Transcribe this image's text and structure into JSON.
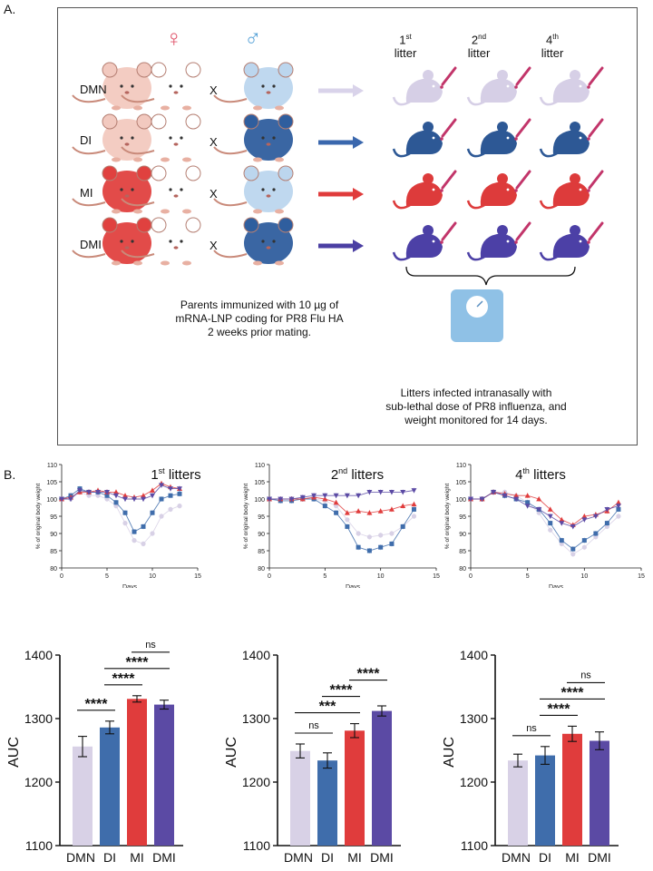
{
  "panel_a": {
    "label": "A.",
    "female_symbol": "♀",
    "male_symbol": "♂",
    "cross_symbol": "X",
    "litter_headers": [
      {
        "num": "1",
        "sup": "st",
        "word": "litter"
      },
      {
        "num": "2",
        "sup": "nd",
        "word": "litter"
      },
      {
        "num": "4",
        "sup": "th",
        "word": "litter"
      }
    ],
    "rows": [
      {
        "name": "DMN",
        "mother": "#f2c9bf",
        "father": "#bcd6ee",
        "arrow": "#d9d3ea",
        "litter": "#d6cfe6"
      },
      {
        "name": "DI",
        "mother": "#f2c9bf",
        "father": "#2f5e9e",
        "arrow": "#3a67ad",
        "litter": "#2d5895"
      },
      {
        "name": "MI",
        "mother": "#e0413f",
        "father": "#bcd6ee",
        "arrow": "#e03c3c",
        "litter": "#dd3b3b"
      },
      {
        "name": "DMI",
        "mother": "#e0413f",
        "father": "#2f5e9e",
        "arrow": "#4b3fa3",
        "litter": "#4c40a6"
      }
    ],
    "parents_note": [
      "Parents immunized with 10 µg of",
      "mRNA-LNP coding for PR8 Flu HA",
      "2 weeks prior mating."
    ],
    "litters_note": [
      "Litters infected intranasally with",
      "sub-lethal dose of PR8 influenza, and",
      "weight monitored for 14 days."
    ]
  },
  "panel_b": {
    "label": "B.",
    "titles": [
      {
        "num": "1",
        "sup": "st",
        "word": " litters"
      },
      {
        "num": "2",
        "sup": "nd",
        "word": " litters"
      },
      {
        "num": "4",
        "sup": "th",
        "word": " litters"
      }
    ]
  },
  "colors": {
    "DMN": "#d8d1e6",
    "DI": "#3f6dab",
    "MI": "#e03c3c",
    "DMI": "#5b4aa4"
  },
  "chart_data": [
    {
      "type": "line",
      "title": "1st litters",
      "xlabel": "Days",
      "ylabel": "% of original body weight",
      "xlim": [
        0,
        15
      ],
      "ylim": [
        80,
        110
      ],
      "xticks": [
        0,
        5,
        10,
        15
      ],
      "yticks": [
        80,
        85,
        90,
        95,
        100,
        105,
        110
      ],
      "x": [
        0,
        1,
        2,
        3,
        4,
        5,
        6,
        7,
        8,
        9,
        10,
        11,
        12,
        13
      ],
      "series": [
        {
          "name": "DMN",
          "values": [
            100,
            100,
            102,
            101,
            101,
            100,
            98,
            93,
            88,
            87,
            90,
            95,
            97,
            98
          ]
        },
        {
          "name": "DI",
          "values": [
            100,
            101,
            103,
            102,
            102,
            101,
            99,
            96,
            90.5,
            92,
            96,
            100,
            101,
            101.5
          ]
        },
        {
          "name": "MI",
          "values": [
            100,
            100.5,
            102,
            102,
            102.5,
            102,
            102,
            101,
            100.5,
            101,
            102.5,
            104.5,
            103.5,
            103
          ]
        },
        {
          "name": "DMI",
          "values": [
            100,
            100,
            102.5,
            102,
            102,
            102,
            101,
            100,
            100,
            100,
            101,
            104,
            103,
            103
          ]
        }
      ]
    },
    {
      "type": "line",
      "title": "2nd litters",
      "xlabel": "Days",
      "ylabel": "% of original body weight",
      "xlim": [
        0,
        15
      ],
      "ylim": [
        80,
        110
      ],
      "xticks": [
        0,
        5,
        10,
        15
      ],
      "yticks": [
        80,
        85,
        90,
        95,
        100,
        105,
        110
      ],
      "x": [
        0,
        1,
        2,
        3,
        4,
        5,
        6,
        7,
        8,
        9,
        10,
        11,
        12,
        13
      ],
      "series": [
        {
          "name": "DMN",
          "values": [
            100,
            100,
            100,
            100,
            100,
            99.5,
            98,
            94,
            90,
            89,
            89.5,
            90,
            92,
            95
          ]
        },
        {
          "name": "DI",
          "values": [
            100,
            99.5,
            99.5,
            100,
            100,
            98,
            96,
            92,
            86,
            85,
            86,
            87,
            92,
            97
          ]
        },
        {
          "name": "MI",
          "values": [
            100,
            100,
            100,
            100,
            100.5,
            100,
            99,
            96,
            96.5,
            96,
            96.5,
            97,
            98,
            98.5
          ]
        },
        {
          "name": "DMI",
          "values": [
            100,
            100,
            100,
            100.5,
            101,
            101,
            101,
            101,
            101,
            102,
            102,
            102,
            102,
            102.5
          ]
        }
      ]
    },
    {
      "type": "line",
      "title": "4th litters",
      "xlabel": "Days",
      "ylabel": "% of original body weight",
      "xlim": [
        0,
        15
      ],
      "ylim": [
        80,
        110
      ],
      "xticks": [
        0,
        5,
        10,
        15
      ],
      "yticks": [
        80,
        85,
        90,
        95,
        100,
        105,
        110
      ],
      "x": [
        0,
        1,
        2,
        3,
        4,
        5,
        6,
        7,
        8,
        9,
        10,
        11,
        12,
        13
      ],
      "series": [
        {
          "name": "DMN",
          "values": [
            100,
            100,
            102,
            102,
            101,
            99,
            96,
            91,
            87,
            84,
            86,
            89,
            92,
            95
          ]
        },
        {
          "name": "DI",
          "values": [
            100,
            100,
            102,
            101,
            100,
            99,
            97,
            93,
            88,
            85.5,
            88,
            90,
            93,
            97
          ]
        },
        {
          "name": "MI",
          "values": [
            100,
            100,
            102,
            101.5,
            101,
            101,
            100,
            97,
            94,
            92.5,
            95,
            95.5,
            96.5,
            99
          ]
        },
        {
          "name": "DMI",
          "values": [
            100,
            100,
            102,
            101,
            100,
            98,
            97,
            95,
            93,
            92,
            94,
            95,
            97,
            98
          ]
        }
      ]
    },
    {
      "type": "bar",
      "categories": [
        "DMN",
        "DI",
        "MI",
        "DMI"
      ],
      "values": [
        1256,
        1286,
        1331,
        1322
      ],
      "errors": [
        16,
        10,
        5,
        7
      ],
      "ylabel": "AUC",
      "ylim": [
        1100,
        1400
      ],
      "yticks": [
        1100,
        1200,
        1300,
        1400
      ],
      "significance": [
        {
          "from": "DMN",
          "to": "DI",
          "label": "****"
        },
        {
          "from": "DI",
          "to": "MI",
          "label": "****"
        },
        {
          "from": "DI",
          "to": "DMI",
          "label": "****"
        },
        {
          "from": "MI",
          "to": "DMI",
          "label": "ns"
        }
      ]
    },
    {
      "type": "bar",
      "categories": [
        "DMN",
        "DI",
        "MI",
        "DMI"
      ],
      "values": [
        1249,
        1234,
        1281,
        1312
      ],
      "errors": [
        11,
        12,
        11,
        8
      ],
      "ylabel": "AUC",
      "ylim": [
        1100,
        1400
      ],
      "yticks": [
        1100,
        1200,
        1300,
        1400
      ],
      "significance": [
        {
          "from": "DMN",
          "to": "DI",
          "label": "ns"
        },
        {
          "from": "DMN",
          "to": "MI",
          "label": "***"
        },
        {
          "from": "DI",
          "to": "MI",
          "label": "****"
        },
        {
          "from": "MI",
          "to": "DMI",
          "label": "****"
        }
      ]
    },
    {
      "type": "bar",
      "categories": [
        "DMN",
        "DI",
        "MI",
        "DMI"
      ],
      "values": [
        1234,
        1242,
        1276,
        1265
      ],
      "errors": [
        10,
        14,
        12,
        14
      ],
      "ylabel": "AUC",
      "ylim": [
        1100,
        1400
      ],
      "yticks": [
        1100,
        1200,
        1300,
        1400
      ],
      "significance": [
        {
          "from": "DMN",
          "to": "DI",
          "label": "ns"
        },
        {
          "from": "DI",
          "to": "MI",
          "label": "****"
        },
        {
          "from": "DI",
          "to": "DMI",
          "label": "****"
        },
        {
          "from": "MI",
          "to": "DMI",
          "label": "ns"
        }
      ]
    }
  ]
}
